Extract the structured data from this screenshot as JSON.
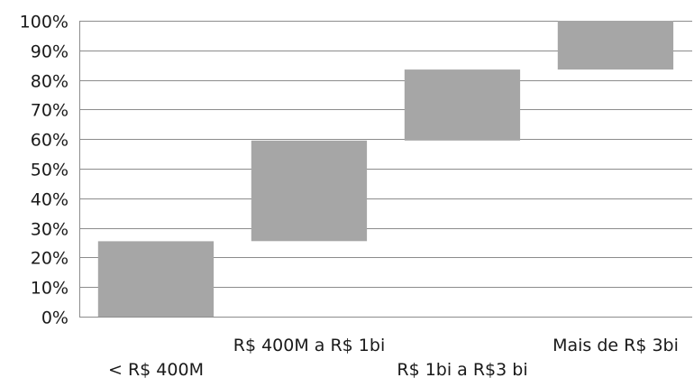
{
  "chart_data": {
    "type": "bar",
    "subtype": "floating-waterfall",
    "categories": [
      "< R$ 400M",
      "R$ 400M a R$ 1bi",
      "R$ 1bi a R$3 bi",
      "Mais de R$ 3bi"
    ],
    "series": [
      {
        "ranges": [
          [
            0,
            25.5
          ],
          [
            25.5,
            59.5
          ],
          [
            59.5,
            83.5
          ],
          [
            83.5,
            100
          ]
        ]
      }
    ],
    "y_ticks": [
      "0%",
      "10%",
      "20%",
      "30%",
      "40%",
      "50%",
      "60%",
      "70%",
      "80%",
      "90%",
      "100%"
    ],
    "ylim": [
      0,
      100
    ],
    "grid": true,
    "legend": "none",
    "colors": {
      "bar": "#a6a6a6",
      "grid": "#8c8c8c",
      "text": "#1a1a1a"
    }
  }
}
